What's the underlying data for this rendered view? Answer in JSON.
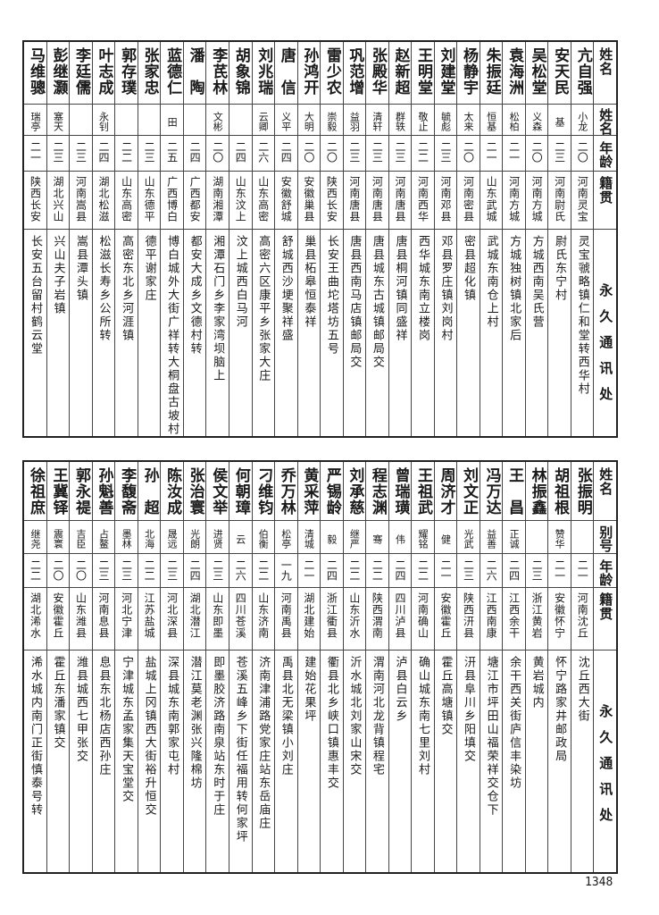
{
  "top_table": {
    "headers": {
      "name": "姓名",
      "alias": "姓名",
      "age": "年龄",
      "native": "籍贯",
      "address": "永久通讯处"
    },
    "rows": [
      {
        "name": "亢自强",
        "alias": "小龙",
        "age": "二〇",
        "native": "河南灵宝",
        "address": "灵宝虢略镇仁和堂转西华村"
      },
      {
        "name": "安天民",
        "alias": "基",
        "age": "二三",
        "native": "河南尉氏",
        "address": "尉氏东宁村"
      },
      {
        "name": "吴松堂",
        "alias": "义森",
        "age": "二〇",
        "native": "河南方城",
        "address": "方城西南吴氏营"
      },
      {
        "name": "袁海洲",
        "alias": "松柏",
        "age": "二一",
        "native": "河南方城",
        "address": "方城独树镇北家后"
      },
      {
        "name": "朱振廷",
        "alias": "恒基",
        "age": "二一",
        "native": "山东武城",
        "address": "武城东南仓上村"
      },
      {
        "name": "杨静宇",
        "alias": "太来",
        "age": "二〇",
        "native": "河南密县",
        "address": "密县超化镇"
      },
      {
        "name": "刘建堂",
        "alias": "毓彪",
        "age": "二三",
        "native": "河南邓县",
        "address": "邓县罗庄镇刘岗村"
      },
      {
        "name": "王明堂",
        "alias": "敬止",
        "age": "二二",
        "native": "河南西华",
        "address": "西华城东南立楼岗"
      },
      {
        "name": "赵新超",
        "alias": "群轶",
        "age": "二三",
        "native": "河南唐县",
        "address": "唐县桐河镇同盛祥"
      },
      {
        "name": "张殿华",
        "alias": "清轩",
        "age": "二三",
        "native": "河南唐县",
        "address": "唐县城东古城镇邮局交"
      },
      {
        "name": "巩范增",
        "alias": "益羽",
        "age": "二三",
        "native": "河南唐县",
        "address": "唐县西南马店镇邮局交"
      },
      {
        "name": "雷少农",
        "alias": "崇毅",
        "age": "二〇",
        "native": "陕西长安",
        "address": "长安王曲坨塔坊五号"
      },
      {
        "name": "孙鸿开",
        "alias": "大明",
        "age": "二〇",
        "native": "安徽巢县",
        "address": "巢县柘皋恒泰祥"
      },
      {
        "name": "唐　信",
        "alias": "义平",
        "age": "二四",
        "native": "安徽舒城",
        "address": "舒城西沙埂聚祥盛"
      },
      {
        "name": "刘兆瑞",
        "alias": "云卿",
        "age": "二六",
        "native": "山东高密",
        "address": "高密六区康平乡张家大庄"
      },
      {
        "name": "胡象锦",
        "alias": "",
        "age": "二四",
        "native": "山东汶上",
        "address": "汶上城西白马河"
      },
      {
        "name": "李芪林",
        "alias": "文彬",
        "age": "二〇",
        "native": "湖南湘潭",
        "address": "湘潭石门乡李家湾坝脑上"
      },
      {
        "name": "潘　陶",
        "alias": "",
        "age": "二四",
        "native": "广西都安",
        "address": "都安大成乡文德村转"
      },
      {
        "name": "蓝德仁",
        "alias": "田",
        "age": "二五",
        "native": "广西博白",
        "address": "博白城外大街广祥转大桐盘古坡村"
      },
      {
        "name": "张家忠",
        "alias": "",
        "age": "二三",
        "native": "山东德平",
        "address": "德平谢家庄"
      },
      {
        "name": "郭存璞",
        "alias": "",
        "age": "二二",
        "native": "山东高密",
        "address": "高密东北乡河涯镇"
      },
      {
        "name": "叶志成",
        "alias": "永钊",
        "age": "二四",
        "native": "湖北松滋",
        "address": "松滋长寿乡公所转"
      },
      {
        "name": "李廷儒",
        "alias": "",
        "age": "二三",
        "native": "河南嵩县",
        "address": "嵩县潭头镇"
      },
      {
        "name": "彭继灏",
        "alias": "塞天",
        "age": "二三",
        "native": "湖北兴山",
        "address": "兴山夫子岩镇"
      },
      {
        "name": "马维骢",
        "alias": "瑞亭",
        "age": "二一",
        "native": "陕西长安",
        "address": "长安五台留村鹤云堂"
      }
    ]
  },
  "bottom_table": {
    "headers": {
      "name": "姓名",
      "alias": "别号",
      "age": "年龄",
      "native": "籍贯",
      "address": "永久通讯处"
    },
    "rows": [
      {
        "name": "张振明",
        "alias": "",
        "age": "二一",
        "native": "河南沈丘",
        "address": "沈丘西大街"
      },
      {
        "name": "胡祖根",
        "alias": "赞华",
        "age": "二一",
        "native": "安徽怀宁",
        "address": "怀宁路家井邮政局"
      },
      {
        "name": "林振鑫",
        "alias": "",
        "age": "二三",
        "native": "浙江黄岩",
        "address": "黄岩城内"
      },
      {
        "name": "王　昌",
        "alias": "正诚",
        "age": "二四",
        "native": "江西余干",
        "address": "余干西关街庐信丰染坊"
      },
      {
        "name": "冯万达",
        "alias": "益善",
        "age": "二六",
        "native": "江西南康",
        "address": "塘江市坪田山福荣祥交仓下"
      },
      {
        "name": "刘文正",
        "alias": "光武",
        "age": "二三",
        "native": "陕西汧县",
        "address": "汧县阜川乡阳填交"
      },
      {
        "name": "周济才",
        "alias": "健",
        "age": "二一",
        "native": "安徽霍丘",
        "address": "霍丘高塘镇交"
      },
      {
        "name": "王祖武",
        "alias": "耀铭",
        "age": "二二",
        "native": "河南确山",
        "address": "确山城东南七里刘村"
      },
      {
        "name": "曾瑞璜",
        "alias": "伟",
        "age": "二四",
        "native": "四川泸县",
        "address": "泸县白云乡"
      },
      {
        "name": "程志渊",
        "alias": "骞",
        "age": "二二",
        "native": "陕西渭南",
        "address": "渭南河北龙背镇程宅"
      },
      {
        "name": "刘承慈",
        "alias": "继严",
        "age": "二二",
        "native": "山东沂水",
        "address": "沂水城北刘家山宋交"
      },
      {
        "name": "严锡龄",
        "alias": "毅",
        "age": "二四",
        "native": "浙江衢县",
        "address": "衢县北乡峡口镇惠丰交"
      },
      {
        "name": "黄采萍",
        "alias": "清城",
        "age": "二一",
        "native": "湖北建始",
        "address": "建始花果坪"
      },
      {
        "name": "乔万林",
        "alias": "松亭",
        "age": "一九",
        "native": "河南禹县",
        "address": "禹县北无梁镇小刘庄"
      },
      {
        "name": "刁维钧",
        "alias": "伯衡",
        "age": "二二",
        "native": "山东济南",
        "address": "济南津浦路党家庄站东岳庙庄"
      },
      {
        "name": "何朝璋",
        "alias": "云",
        "age": "二六",
        "native": "四川苍溪",
        "address": "苍溪五峰乡下街任福用转何家坪"
      },
      {
        "name": "侯文举",
        "alias": "进贤",
        "age": "二三",
        "native": "山东即墨",
        "address": "即墨胶济路南泉站东时于庄"
      },
      {
        "name": "张治寰",
        "alias": "光朗",
        "age": "二四",
        "native": "湖北潜江",
        "address": "潜江莫老渊张兴隆棉坊"
      },
      {
        "name": "陈汝成",
        "alias": "晟远",
        "age": "二三",
        "native": "河北深县",
        "address": "深县城东南郭家屯村"
      },
      {
        "name": "孙　超",
        "alias": "北海",
        "age": "二二",
        "native": "江苏盐城",
        "address": "盐城上冈镇西大街裕升恒交"
      },
      {
        "name": "李馥斋",
        "alias": "墨林",
        "age": "二三",
        "native": "河北宁津",
        "address": "宁津城东孟家集天宝堂交"
      },
      {
        "name": "孙魁善",
        "alias": "占鳌",
        "age": "二三",
        "native": "河南息县",
        "address": "息县东北杨店西孙庄"
      },
      {
        "name": "郭永禔",
        "alias": "吉臣",
        "age": "二〇",
        "native": "山东潍县",
        "address": "潍县城西七甲张交"
      },
      {
        "name": "王冀铎",
        "alias": "震寰",
        "age": "二〇",
        "native": "安徽霍丘",
        "address": "霍丘东潘家镇交"
      },
      {
        "name": "徐祖庶",
        "alias": "继尧",
        "age": "二二",
        "native": "湖北浠水",
        "address": "浠水城内南门正街慎泰号转"
      }
    ]
  },
  "page_number": "1348"
}
